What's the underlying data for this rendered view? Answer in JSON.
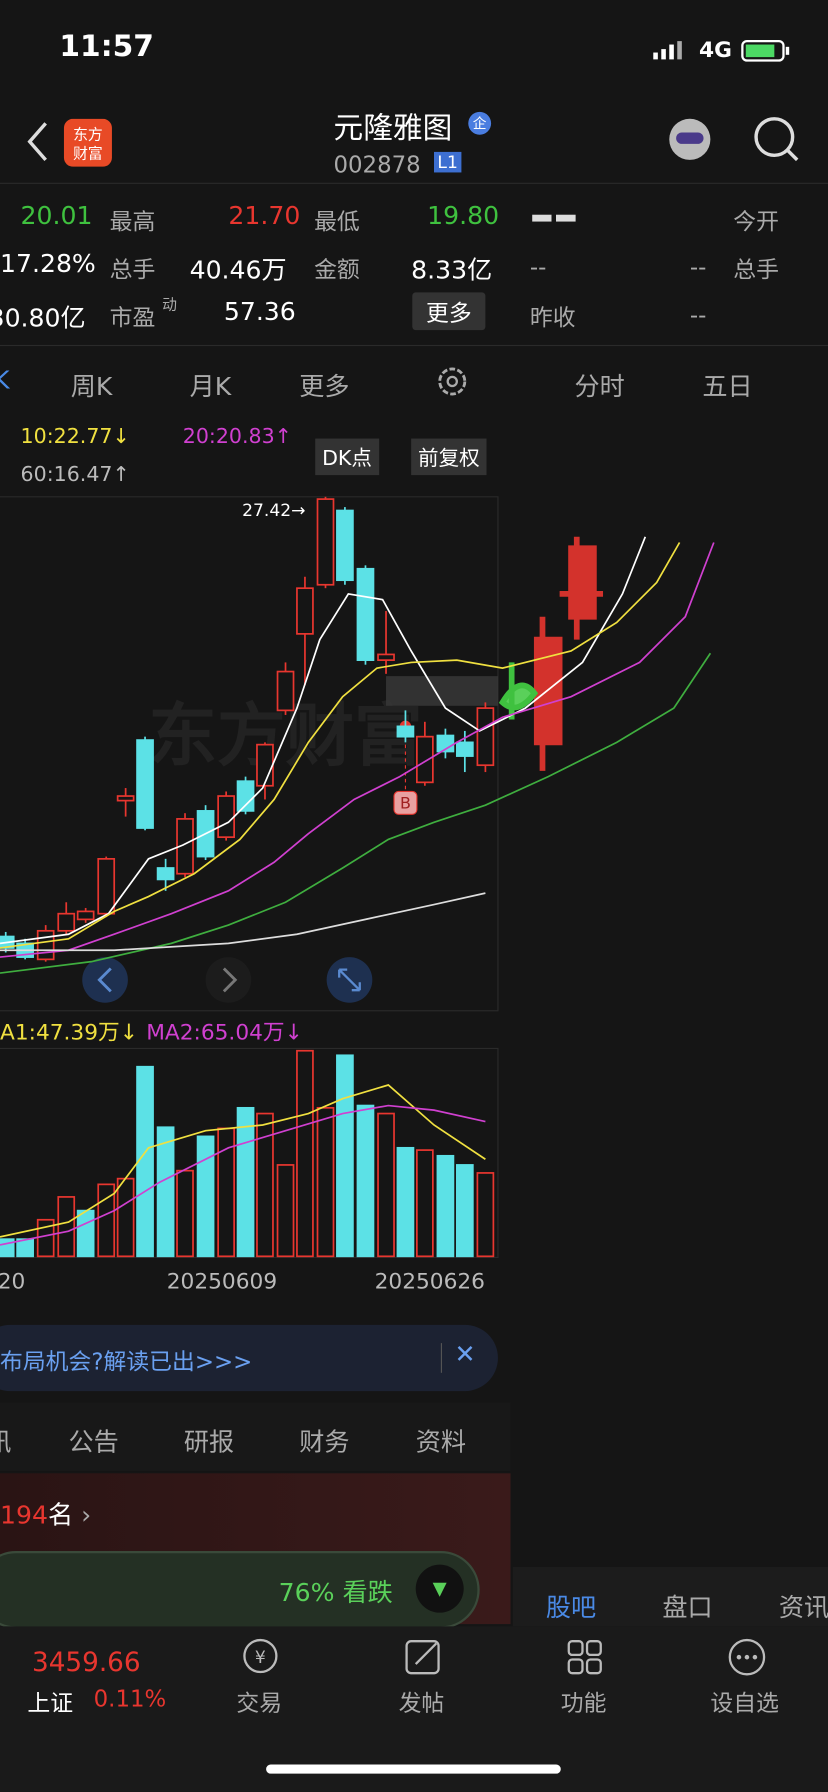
{
  "status_bar": {
    "time": "11:57",
    "network": "4G"
  },
  "header": {
    "title": "元隆雅图",
    "badge": "企",
    "code": "002878",
    "level": "L1"
  },
  "quote": {
    "rows": [
      [
        "20.01",
        "最高",
        "21.70",
        "最低",
        "19.80",
        "今开"
      ],
      [
        "17.28%",
        "总手",
        "40.46万",
        "金额",
        "8.33亿",
        "--",
        "--",
        "总手"
      ],
      [
        "30.80亿",
        "市盈",
        "动",
        "57.36",
        "更多",
        "昨收",
        "--"
      ]
    ]
  },
  "period_tabs": [
    "K",
    "周K",
    "月K",
    "更多",
    "分时",
    "五日"
  ],
  "chart": {
    "ma10": "10:22.77↓",
    "ma20": "20:20.83↑",
    "ma60": "60:16.47↑",
    "dk": "DK点",
    "adjust": "前复权",
    "high_label": "27.42→",
    "buy_mark": "B"
  },
  "volume": {
    "ma1": "A1:47.39万↓",
    "ma2": "MA2:65.04万↓",
    "dates": [
      "20",
      "20250609",
      "20250626"
    ]
  },
  "banner": {
    "text": "布局机会?解读已出>>>"
  },
  "info_tabs": [
    "讯",
    "公告",
    "研报",
    "财务",
    "资料"
  ],
  "rank": {
    "number": "194",
    "unit": "名"
  },
  "vote": {
    "text": "76% 看跌"
  },
  "side_tabs": [
    "股吧",
    "盘口",
    "资讯"
  ],
  "bottom_nav": {
    "index_value": "3459.66",
    "index_name": "上证",
    "index_change": "0.11%",
    "items": [
      "交易",
      "发帖",
      "功能",
      "设自选"
    ]
  }
}
